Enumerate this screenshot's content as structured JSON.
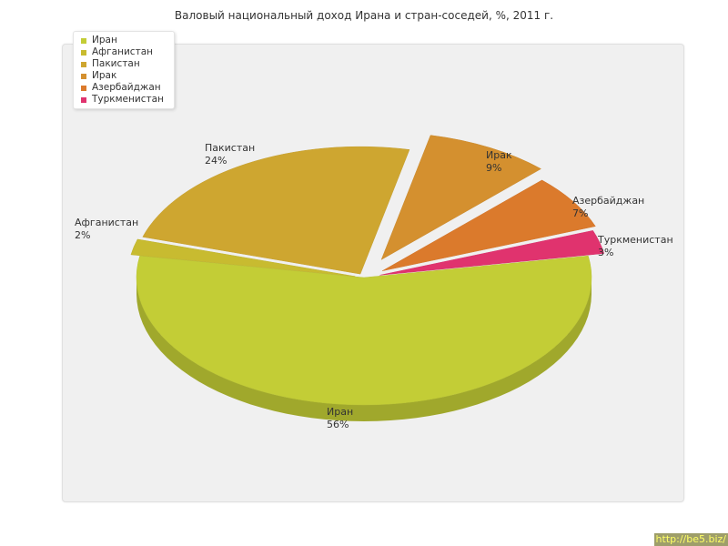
{
  "chart_data": {
    "type": "pie",
    "title": "Валовый национальный доход Ирана и стран-соседей, %, 2011 г.",
    "slices": [
      {
        "label": "Иран",
        "value": 56,
        "value_label": "56%",
        "color": "#c3cd36"
      },
      {
        "label": "Афганистан",
        "value": 2,
        "value_label": "2%",
        "color": "#c8bb30"
      },
      {
        "label": "Пакистан",
        "value": 24,
        "value_label": "24%",
        "color": "#cea630"
      },
      {
        "label": "Ирак",
        "value": 9,
        "value_label": "9%",
        "color": "#d4902f"
      },
      {
        "label": "Азербайджан",
        "value": 7,
        "value_label": "7%",
        "color": "#db7a2c"
      },
      {
        "label": "Туркменистан",
        "value": 3,
        "value_label": "3%",
        "color": "#e0336e"
      }
    ],
    "legend_position": "top-left",
    "exploded": true,
    "style": "3d"
  },
  "watermark": "http://be5.biz/"
}
